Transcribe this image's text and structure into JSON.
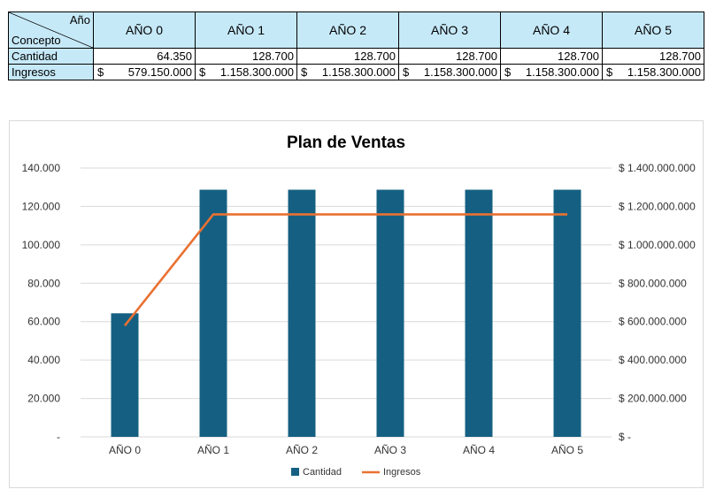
{
  "table": {
    "corner_top": "Año",
    "corner_bottom": "Concepto",
    "headers": [
      "AÑO 0",
      "AÑO 1",
      "AÑO 2",
      "AÑO 3",
      "AÑO 4",
      "AÑO 5"
    ],
    "rows": [
      {
        "label": "Cantidad",
        "type": "num",
        "values": [
          "64.350",
          "128.700",
          "128.700",
          "128.700",
          "128.700",
          "128.700"
        ]
      },
      {
        "label": "Ingresos",
        "type": "money",
        "currency": "$",
        "values": [
          "579.150.000",
          "1.158.300.000",
          "1.158.300.000",
          "1.158.300.000",
          "1.158.300.000",
          "1.158.300.000"
        ]
      }
    ]
  },
  "chart_data": {
    "type": "bar",
    "title": "Plan de Ventas",
    "categories": [
      "AÑO 0",
      "AÑO 1",
      "AÑO 2",
      "AÑO 3",
      "AÑO 4",
      "AÑO 5"
    ],
    "series": [
      {
        "name": "Cantidad",
        "type": "bar",
        "axis": "left",
        "color": "#156082",
        "values": [
          64350,
          128700,
          128700,
          128700,
          128700,
          128700
        ]
      },
      {
        "name": "Ingresos",
        "type": "line",
        "axis": "right",
        "color": "#e97132",
        "values": [
          579150000,
          1158300000,
          1158300000,
          1158300000,
          1158300000,
          1158300000
        ]
      }
    ],
    "ylim_left": [
      0,
      140000
    ],
    "ylim_right": [
      0,
      1400000000
    ],
    "left_ticks": [
      "-",
      "20.000",
      "40.000",
      "60.000",
      "80.000",
      "100.000",
      "120.000",
      "140.000"
    ],
    "right_ticks": [
      "$ -",
      "$ 200.000.000",
      "$ 400.000.000",
      "$ 600.000.000",
      "$ 800.000.000",
      "$ 1.000.000.000",
      "$ 1.200.000.000",
      "$ 1.400.000.000"
    ],
    "grid": true,
    "legend_position": "bottom"
  }
}
